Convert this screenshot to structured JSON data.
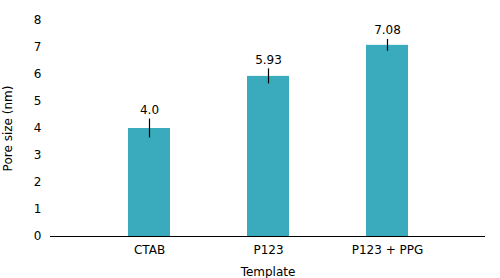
{
  "chart_data": {
    "type": "bar",
    "categories": [
      "CTAB",
      "P123",
      "P123 + PPG"
    ],
    "values": [
      4.0,
      5.93,
      7.08
    ],
    "value_labels": [
      "4.0",
      "5.93",
      "7.08"
    ],
    "errors": [
      0.35,
      0.28,
      0.22
    ],
    "color": "#3aabbc",
    "xlabel": "Template",
    "ylabel": "Pore size (nm)",
    "ylim": [
      0,
      8
    ],
    "yticks": [
      0,
      1,
      2,
      3,
      4,
      5,
      6,
      7,
      8
    ],
    "data_labels": true
  }
}
